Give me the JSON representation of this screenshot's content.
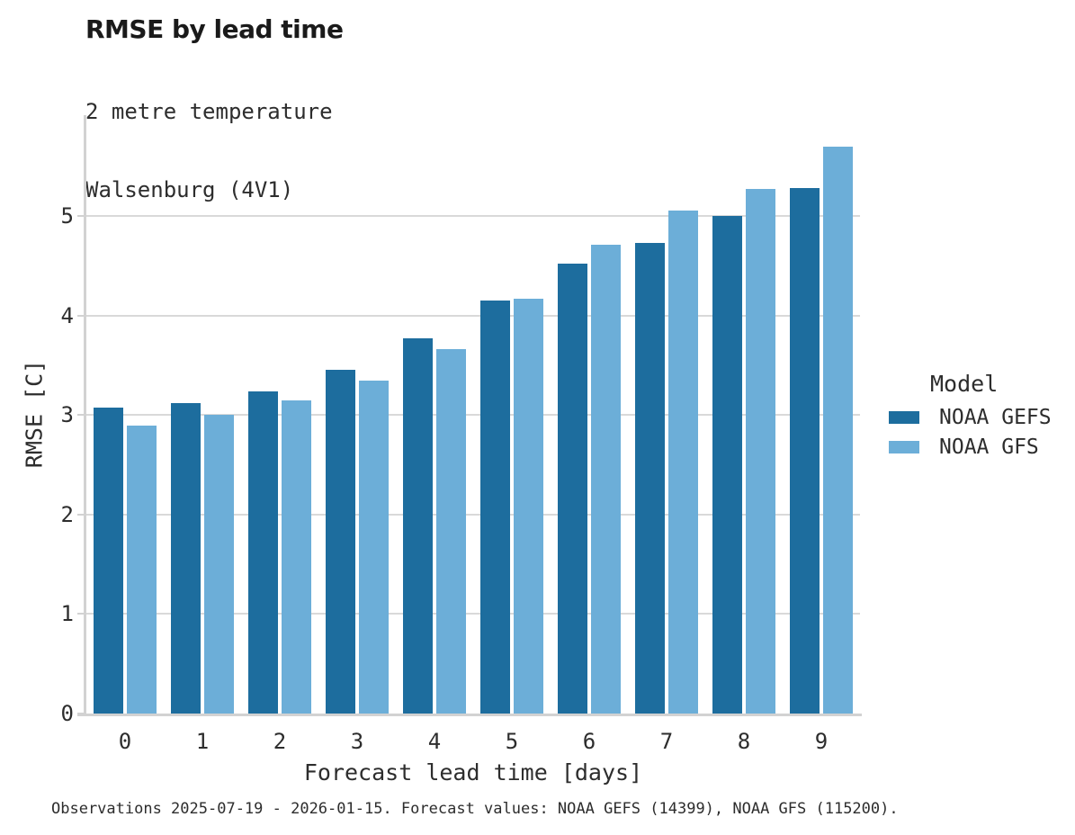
{
  "title": "RMSE by lead time",
  "subtitle_lines": [
    "2 metre temperature",
    "Walsenburg (4V1)"
  ],
  "caption": "Observations 2025-07-19 - 2026-01-15. Forecast values: NOAA GEFS (14399), NOAA GFS (115200).",
  "colors": {
    "noaa_gefs": "#1d6d9e",
    "noaa_gfs": "#6caed8",
    "gridline": "#d9d9d9",
    "spine": "#d2d2d2"
  },
  "legend": {
    "title": "Model",
    "entries": [
      {
        "label": "NOAA GEFS",
        "color": "#1d6d9e"
      },
      {
        "label": "NOAA GFS",
        "color": "#6caed8"
      }
    ]
  },
  "chart_data": {
    "type": "bar",
    "title": "RMSE by lead time",
    "subtitle": "2 metre temperature / Walsenburg (4V1)",
    "xlabel": "Forecast lead time [days]",
    "ylabel": "RMSE [C]",
    "categories": [
      0,
      1,
      2,
      3,
      4,
      5,
      6,
      7,
      8,
      9
    ],
    "series": [
      {
        "name": "NOAA GEFS",
        "color": "#1d6d9e",
        "values": [
          3.07,
          3.12,
          3.24,
          3.45,
          3.77,
          4.15,
          4.52,
          4.73,
          5.0,
          5.28
        ]
      },
      {
        "name": "NOAA GFS",
        "color": "#6caed8",
        "values": [
          2.89,
          3.0,
          3.15,
          3.35,
          3.66,
          4.17,
          4.71,
          5.05,
          5.27,
          5.7
        ]
      }
    ],
    "ylim": [
      0,
      6
    ],
    "yticks": [
      0,
      1,
      2,
      3,
      4,
      5
    ],
    "grid": "horizontal",
    "legend_position": "right",
    "legend_title": "Model"
  }
}
